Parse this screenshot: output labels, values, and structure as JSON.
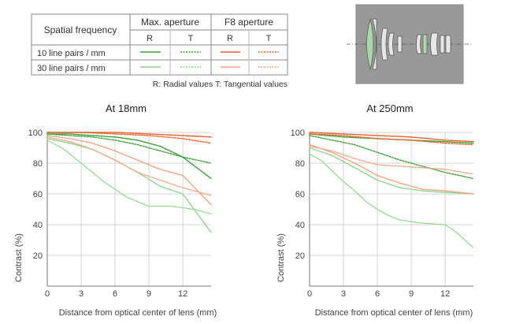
{
  "legend_table": {
    "row_header": "Spatial frequency",
    "col_groups": [
      "Max. aperture",
      "F8 aperture"
    ],
    "sub_cols": [
      "R",
      "T",
      "R",
      "T"
    ],
    "rows": [
      "10 line pairs / mm",
      "30 line pairs / mm"
    ],
    "note": "R: Radial values  T: Tangential values",
    "colors": {
      "max_10": "#3aa13a",
      "max_30": "#8fd68f",
      "f8_10": "#e8602c",
      "f8_30": "#f4a583"
    }
  },
  "lens_diagram": {
    "label": "lens-cross-section"
  },
  "chart_data": [
    {
      "type": "line",
      "title": "At 18mm",
      "xlabel": "Distance from optical center of lens (mm)",
      "ylabel": "Contrast (%)",
      "xlim": [
        0,
        14.5
      ],
      "ylim": [
        0,
        100
      ],
      "xticks": [
        0,
        3,
        6,
        9,
        12
      ],
      "yticks": [
        20,
        40,
        60,
        80,
        100
      ],
      "grid": true,
      "series": [
        {
          "key": "max_10_R",
          "color": "#3aa13a",
          "style": "solid",
          "x": [
            0,
            2,
            4,
            6,
            8,
            10,
            12,
            14.5
          ],
          "y": [
            99,
            99,
            98,
            97,
            95,
            91,
            84,
            70
          ]
        },
        {
          "key": "max_10_T",
          "color": "#3aa13a",
          "style": "dashed",
          "x": [
            0,
            2,
            4,
            6,
            8,
            10,
            12,
            14.5
          ],
          "y": [
            99,
            98,
            97,
            95,
            92,
            88,
            84,
            80
          ]
        },
        {
          "key": "max_30_R",
          "color": "#8fd68f",
          "style": "solid",
          "x": [
            0,
            2,
            4,
            6,
            8,
            10,
            12,
            14.5
          ],
          "y": [
            96,
            93,
            89,
            82,
            74,
            65,
            60,
            35
          ]
        },
        {
          "key": "max_30_T",
          "color": "#8fd68f",
          "style": "dashed",
          "x": [
            0,
            1.5,
            3,
            5,
            7,
            9,
            11,
            13,
            14.5
          ],
          "y": [
            95,
            89,
            80,
            68,
            58,
            52,
            52,
            50,
            47
          ]
        },
        {
          "key": "f8_10_R",
          "color": "#e8602c",
          "style": "solid",
          "x": [
            0,
            3,
            6,
            9,
            12,
            14.5
          ],
          "y": [
            100,
            100,
            100,
            99,
            98,
            97
          ]
        },
        {
          "key": "f8_10_T",
          "color": "#e8602c",
          "style": "dashed",
          "x": [
            0,
            3,
            6,
            9,
            12,
            14.5
          ],
          "y": [
            100,
            100,
            99,
            98,
            96,
            93
          ]
        },
        {
          "key": "f8_30_R",
          "color": "#f4a583",
          "style": "solid",
          "x": [
            0,
            2,
            4,
            6,
            8,
            10,
            12,
            14.5
          ],
          "y": [
            98,
            96,
            93,
            88,
            82,
            76,
            72,
            53
          ]
        },
        {
          "key": "f8_30_T",
          "color": "#f4a583",
          "style": "dashed",
          "x": [
            0,
            2,
            4,
            6,
            8,
            10,
            12,
            14.5
          ],
          "y": [
            97,
            94,
            89,
            82,
            74,
            69,
            64,
            59
          ]
        }
      ]
    },
    {
      "type": "line",
      "title": "At 250mm",
      "xlabel": "Distance from optical center of lens (mm)",
      "ylabel": "Contrast (%)",
      "xlim": [
        0,
        14.5
      ],
      "ylim": [
        0,
        100
      ],
      "xticks": [
        0,
        3,
        6,
        9,
        12
      ],
      "yticks": [
        20,
        40,
        60,
        80,
        100
      ],
      "grid": true,
      "series": [
        {
          "key": "max_10_R",
          "color": "#3aa13a",
          "style": "solid",
          "x": [
            0,
            3,
            6,
            9,
            12,
            14.5
          ],
          "y": [
            99,
            97,
            96,
            95,
            94,
            93
          ]
        },
        {
          "key": "max_10_T",
          "color": "#3aa13a",
          "style": "dashed",
          "x": [
            0,
            2,
            4,
            6,
            8,
            10,
            12,
            14.5
          ],
          "y": [
            98,
            95,
            92,
            87,
            82,
            78,
            74,
            70
          ]
        },
        {
          "key": "max_30_R",
          "color": "#8fd68f",
          "style": "solid",
          "x": [
            0,
            2,
            4,
            6,
            8,
            10,
            12,
            14.5
          ],
          "y": [
            90,
            85,
            77,
            69,
            64,
            62,
            61,
            60
          ]
        },
        {
          "key": "max_30_T",
          "color": "#8fd68f",
          "style": "dashed",
          "x": [
            0,
            1,
            2,
            3,
            4,
            5,
            6,
            7,
            8,
            10,
            12,
            13,
            14.5
          ],
          "y": [
            86,
            82,
            75,
            68,
            62,
            55,
            50,
            46,
            43,
            41,
            40,
            35,
            25
          ]
        },
        {
          "key": "f8_10_R",
          "color": "#e8602c",
          "style": "solid",
          "x": [
            0,
            3,
            6,
            9,
            12,
            14.5
          ],
          "y": [
            100,
            99,
            98,
            97,
            95,
            94
          ]
        },
        {
          "key": "f8_10_T",
          "color": "#e8602c",
          "style": "dashed",
          "x": [
            0,
            3,
            6,
            9,
            12,
            14.5
          ],
          "y": [
            99,
            98,
            96,
            95,
            93,
            92
          ]
        },
        {
          "key": "f8_30_R",
          "color": "#f4a583",
          "style": "solid",
          "x": [
            0,
            2,
            4,
            6,
            8,
            10,
            12,
            14.5
          ],
          "y": [
            92,
            87,
            80,
            72,
            67,
            63,
            62,
            60
          ]
        },
        {
          "key": "f8_30_T",
          "color": "#f4a583",
          "style": "dashed",
          "x": [
            0,
            2,
            4,
            6,
            8,
            10,
            12,
            14.5
          ],
          "y": [
            91,
            88,
            83,
            79,
            78,
            77,
            76,
            73
          ]
        }
      ]
    }
  ]
}
